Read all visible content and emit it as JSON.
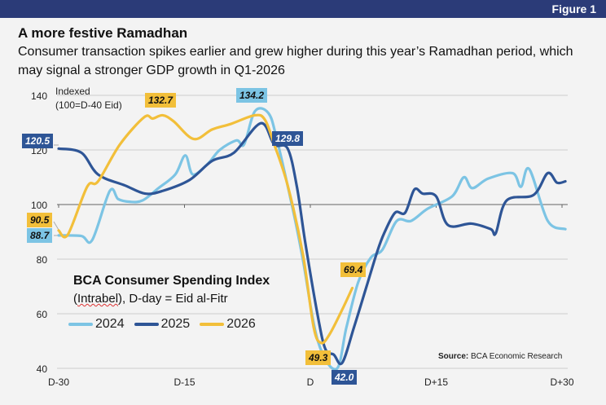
{
  "figure_label": "Figure 1",
  "title": "A more festive Ramadhan",
  "subtitle": "Consumer transaction spikes earlier and grew higher during this year’s Ramadhan period, which may signal a stronger GDP growth in Q1-2026",
  "source_bold": "Source:",
  "source_text": " BCA Economic Research",
  "chart_data": {
    "type": "line",
    "title": "BCA Consumer Spending Index",
    "subtitle_pre": "(",
    "subtitle_link": "Intrabel",
    "subtitle_post": "), D-day = Eid al-Fitr",
    "ylabel_line1": "Indexed",
    "ylabel_line2": "(100=D-40 Eid)",
    "xlim": [
      -30,
      30
    ],
    "ylim": [
      40,
      140
    ],
    "yticks": [
      40,
      60,
      80,
      100,
      120,
      140
    ],
    "xticks": [
      {
        "v": -30,
        "label": "D-30"
      },
      {
        "v": -15,
        "label": "D-15"
      },
      {
        "v": 0,
        "label": "D"
      },
      {
        "v": 15,
        "label": "D+15"
      },
      {
        "v": 30,
        "label": "D+30"
      }
    ],
    "grid": true,
    "legend_position": "bottom-left",
    "series": [
      {
        "name": "2024",
        "color": "#7cc4e4",
        "points": [
          [
            -30,
            88.7
          ],
          [
            -27.3,
            88.5
          ],
          [
            -26,
            87
          ],
          [
            -23.9,
            105
          ],
          [
            -22.9,
            102
          ],
          [
            -21.5,
            101
          ],
          [
            -20,
            101.5
          ],
          [
            -18.1,
            106
          ],
          [
            -16.1,
            111
          ],
          [
            -14.9,
            118
          ],
          [
            -14,
            111
          ],
          [
            -12.2,
            115
          ],
          [
            -10.8,
            120
          ],
          [
            -8.8,
            123.5
          ],
          [
            -7.9,
            122
          ],
          [
            -6.6,
            134.2
          ],
          [
            -5,
            133.5
          ],
          [
            -4,
            124
          ],
          [
            -2,
            97
          ],
          [
            -0.9,
            80
          ],
          [
            0.9,
            50
          ],
          [
            3.1,
            39.7
          ],
          [
            4.3,
            55
          ],
          [
            5.7,
            71.5
          ],
          [
            7.2,
            80.5
          ],
          [
            8.6,
            83.5
          ],
          [
            10.3,
            94
          ],
          [
            12,
            94
          ],
          [
            14,
            98.5
          ],
          [
            16.9,
            103
          ],
          [
            18.3,
            110
          ],
          [
            19.3,
            106
          ],
          [
            21.2,
            109.5
          ],
          [
            24.1,
            111.5
          ],
          [
            25.1,
            106.5
          ],
          [
            26.1,
            113
          ],
          [
            28.3,
            94
          ],
          [
            30.4,
            91
          ]
        ]
      },
      {
        "name": "2025",
        "color": "#2e5596",
        "points": [
          [
            -30,
            120.5
          ],
          [
            -27.3,
            119
          ],
          [
            -25.3,
            111
          ],
          [
            -22.1,
            107
          ],
          [
            -19.7,
            104
          ],
          [
            -17.6,
            105
          ],
          [
            -14.4,
            109
          ],
          [
            -11.7,
            116
          ],
          [
            -9.1,
            119
          ],
          [
            -5.9,
            129.8
          ],
          [
            -4.3,
            122
          ],
          [
            -2.7,
            120.5
          ],
          [
            -1.6,
            106.5
          ],
          [
            -0.6,
            86
          ],
          [
            0.9,
            59
          ],
          [
            1.8,
            47
          ],
          [
            2.8,
            45
          ],
          [
            3.8,
            42
          ],
          [
            5.2,
            55
          ],
          [
            6.7,
            70
          ],
          [
            8,
            83
          ],
          [
            8.8,
            89.5
          ],
          [
            10.1,
            97
          ],
          [
            11.3,
            97
          ],
          [
            12.4,
            105.5
          ],
          [
            13.4,
            104
          ],
          [
            15,
            103
          ],
          [
            16.4,
            92.5
          ],
          [
            19.2,
            93
          ],
          [
            21.5,
            91
          ],
          [
            22.1,
            89.5
          ],
          [
            23.4,
            101.5
          ],
          [
            26.6,
            103.5
          ],
          [
            28.3,
            111.5
          ],
          [
            29.4,
            108
          ],
          [
            30.4,
            108.5
          ]
        ]
      },
      {
        "name": "2026",
        "color": "#f2bf3a",
        "points": [
          [
            -30,
            90.5
          ],
          [
            -28.9,
            89
          ],
          [
            -26.6,
            106.5
          ],
          [
            -25.3,
            108.5
          ],
          [
            -22.7,
            122
          ],
          [
            -19.8,
            132
          ],
          [
            -18.8,
            131.5
          ],
          [
            -17.6,
            132.7
          ],
          [
            -16.3,
            130.5
          ],
          [
            -13.9,
            124
          ],
          [
            -11.7,
            127.5
          ],
          [
            -9.5,
            129.5
          ],
          [
            -6.6,
            132.7
          ],
          [
            -5.4,
            131
          ],
          [
            -4.3,
            122
          ],
          [
            -2.7,
            107
          ],
          [
            -0.9,
            82
          ],
          [
            0.4,
            55
          ],
          [
            1.3,
            49.3
          ],
          [
            2.3,
            52.5
          ],
          [
            3.8,
            61.5
          ],
          [
            5,
            69.4
          ]
        ]
      }
    ],
    "annotations": [
      {
        "text": "120.5",
        "series": "2025"
      },
      {
        "text": "90.5",
        "series": "2026"
      },
      {
        "text": "88.7",
        "series": "2024"
      },
      {
        "text": "132.7",
        "series": "2026"
      },
      {
        "text": "134.2",
        "series": "2024"
      },
      {
        "text": "129.8",
        "series": "2025"
      },
      {
        "text": "69.4",
        "series": "2026"
      },
      {
        "text": "49.3",
        "series": "2026"
      },
      {
        "text": "42.0",
        "series": "2025"
      }
    ]
  }
}
